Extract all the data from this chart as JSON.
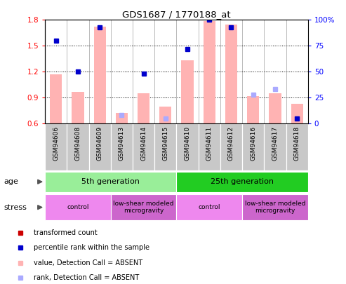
{
  "title": "GDS1687 / 1770188_at",
  "samples": [
    "GSM94606",
    "GSM94608",
    "GSM94609",
    "GSM94613",
    "GSM94614",
    "GSM94615",
    "GSM94610",
    "GSM94611",
    "GSM94612",
    "GSM94616",
    "GSM94617",
    "GSM94618"
  ],
  "bar_values": [
    1.17,
    0.97,
    1.72,
    0.72,
    0.95,
    0.8,
    1.33,
    1.79,
    1.75,
    0.92,
    0.95,
    0.83
  ],
  "bar_absent": [
    true,
    true,
    true,
    true,
    true,
    true,
    true,
    true,
    true,
    true,
    true,
    true
  ],
  "rank_pct": [
    80,
    50,
    93,
    8,
    48,
    5,
    72,
    100,
    93,
    28,
    33,
    5
  ],
  "rank_absent": [
    false,
    false,
    false,
    true,
    false,
    true,
    false,
    false,
    false,
    true,
    true,
    false
  ],
  "ylim": [
    0.6,
    1.8
  ],
  "yticks": [
    0.6,
    0.9,
    1.2,
    1.5,
    1.8
  ],
  "right_yticks": [
    0,
    25,
    50,
    75,
    100
  ],
  "bar_color_absent": "#FFB3B3",
  "bar_color_present": "#FF0000",
  "rank_color_absent": "#AAAAFF",
  "rank_color_present": "#0000CC",
  "bg_color": "#ffffff",
  "xlabel_bg": "#C8C8C8",
  "age_row": [
    {
      "label": "5th generation",
      "start": 0,
      "end": 6,
      "color": "#99EE99"
    },
    {
      "label": "25th generation",
      "start": 6,
      "end": 12,
      "color": "#22CC22"
    }
  ],
  "stress_row": [
    {
      "label": "control",
      "start": 0,
      "end": 3,
      "color": "#EE88EE"
    },
    {
      "label": "low-shear modeled\nmicrogravity",
      "start": 3,
      "end": 6,
      "color": "#CC66CC"
    },
    {
      "label": "control",
      "start": 6,
      "end": 9,
      "color": "#EE88EE"
    },
    {
      "label": "low-shear modeled\nmicrogravity",
      "start": 9,
      "end": 12,
      "color": "#CC66CC"
    }
  ],
  "legend_items": [
    {
      "color": "#CC0000",
      "label": "transformed count"
    },
    {
      "color": "#0000CC",
      "label": "percentile rank within the sample"
    },
    {
      "color": "#FFB3B3",
      "label": "value, Detection Call = ABSENT"
    },
    {
      "color": "#AAAAFF",
      "label": "rank, Detection Call = ABSENT"
    }
  ]
}
